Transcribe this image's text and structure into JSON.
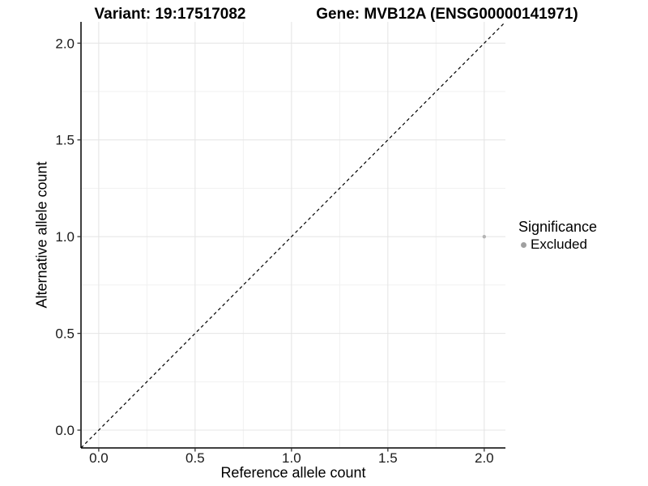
{
  "header": {
    "variant_title": "Variant: 19:17517082",
    "gene_title": "Gene: MVB12A (ENSG00000141971)"
  },
  "chart_data": {
    "type": "scatter",
    "title": "Variant: 19:17517082  /  Gene: MVB12A (ENSG00000141971)",
    "xlabel": "Reference allele count",
    "ylabel": "Alternative allele count",
    "xlim": [
      -0.092,
      2.11
    ],
    "ylim": [
      -0.092,
      2.11
    ],
    "x_ticks": [
      0.0,
      0.5,
      1.0,
      1.5,
      2.0
    ],
    "y_ticks": [
      0.0,
      0.5,
      1.0,
      1.5,
      2.0
    ],
    "x_tick_labels": [
      "0.0",
      "0.5",
      "1.0",
      "1.5",
      "2.0"
    ],
    "y_tick_labels": [
      "0.0",
      "0.5",
      "1.0",
      "1.5",
      "2.0"
    ],
    "x_minor_ticks": [
      0.25,
      0.75,
      1.25,
      1.75
    ],
    "y_minor_ticks": [
      0.25,
      0.75,
      1.25,
      1.75
    ],
    "grid": true,
    "points": [
      {
        "x": 2.0,
        "y": 1.0,
        "series": "Excluded",
        "color": "#b4b4b4",
        "radius": 2.2
      }
    ],
    "reference_line": {
      "slope": 1,
      "intercept": 0,
      "style": "dashed",
      "color": "#000000"
    },
    "colors": {
      "grid_major": "#e4e4e4",
      "grid_minor": "#f1f1f1",
      "axis_line": "#000000",
      "tick_mark": "#333333",
      "tick_text": "#1a1a1a"
    }
  },
  "legend": {
    "title": "Significance",
    "items": [
      {
        "label": "Excluded",
        "color": "#a0a0a0"
      }
    ],
    "position": "right-center"
  }
}
